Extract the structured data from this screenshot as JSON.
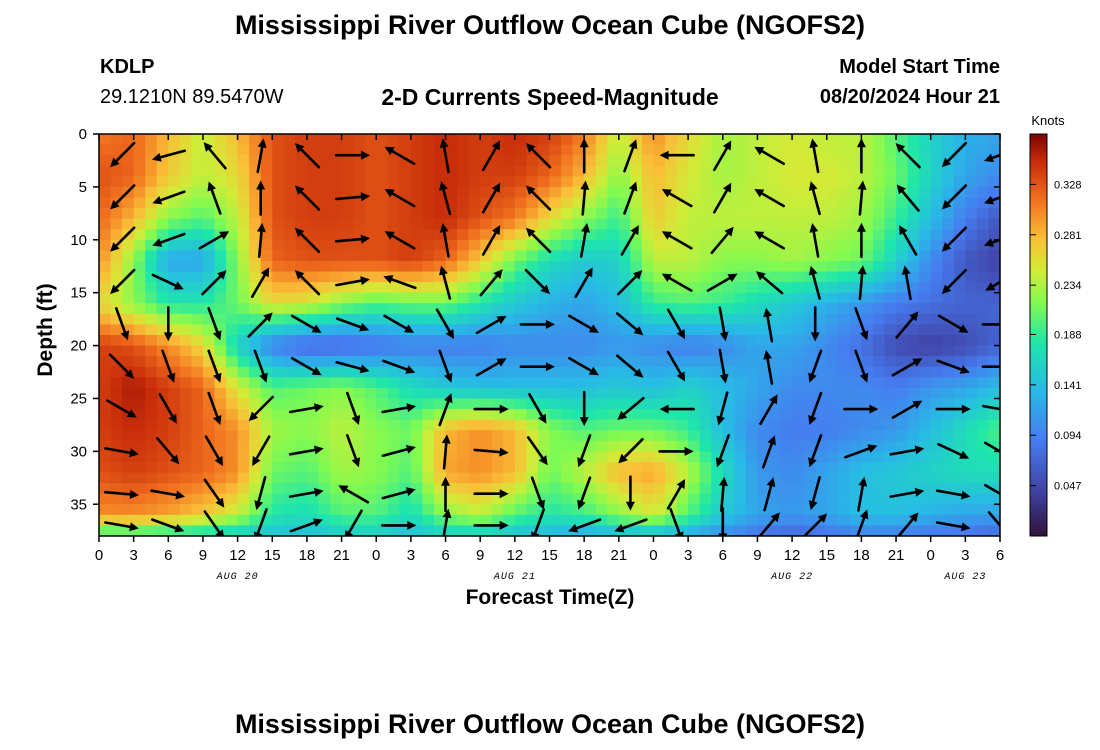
{
  "title": "Mississippi River Outflow Ocean Cube (NGOFS2)",
  "footer_title": "Mississippi River Outflow Ocean Cube (NGOFS2)",
  "station": {
    "id": "KDLP",
    "coords": "29.1210N  89.5470W"
  },
  "product": "2-D Currents Speed-Magnitude",
  "model_start": {
    "label": "Model Start Time",
    "value": "08/20/2024 Hour 21"
  },
  "chart_data": {
    "type": "heatmap",
    "xlabel": "Forecast Time(Z)",
    "ylabel": "Depth (ft)",
    "colorbar_label": "Knots",
    "colorbar_ticks": [
      0.047,
      0.094,
      0.141,
      0.188,
      0.234,
      0.281,
      0.328
    ],
    "colorbar_range": [
      0.0,
      0.375
    ],
    "x_tick_labels": [
      "0",
      "3",
      "6",
      "9",
      "12",
      "15",
      "18",
      "21",
      "0",
      "3",
      "6",
      "9",
      "12",
      "15",
      "18",
      "21",
      "0",
      "3",
      "6",
      "9",
      "12",
      "15",
      "18",
      "21",
      "0",
      "3",
      "6"
    ],
    "x_hours": [
      0,
      3,
      6,
      9,
      12,
      15,
      18,
      21,
      24,
      27,
      30,
      33,
      36,
      39,
      42,
      45,
      48,
      51,
      54,
      57,
      60,
      63,
      66,
      69,
      72,
      75,
      78
    ],
    "date_labels": [
      {
        "text": "AUG 20",
        "hour": 12
      },
      {
        "text": "AUG 21",
        "hour": 36
      },
      {
        "text": "AUG 22",
        "hour": 60
      },
      {
        "text": "AUG 23",
        "hour": 75
      }
    ],
    "xlim": [
      0,
      78
    ],
    "ylim": [
      0,
      38
    ],
    "y_ticks": [
      0,
      5,
      10,
      15,
      20,
      25,
      30,
      35
    ],
    "y_reversed": true,
    "grid": false,
    "speed_field": {
      "x_hours": [
        0,
        3,
        6,
        9,
        12,
        15,
        18,
        21,
        24,
        27,
        30,
        33,
        36,
        39,
        42,
        45,
        48,
        51,
        54,
        57,
        60,
        63,
        66,
        69,
        72,
        75,
        78
      ],
      "depths": [
        0,
        4,
        8,
        12,
        16,
        20,
        24,
        28,
        32,
        36,
        38
      ],
      "knots": [
        [
          0.31,
          0.32,
          0.28,
          0.24,
          0.28,
          0.33,
          0.34,
          0.34,
          0.33,
          0.34,
          0.35,
          0.34,
          0.35,
          0.34,
          0.31,
          0.24,
          0.3,
          0.26,
          0.23,
          0.24,
          0.25,
          0.24,
          0.24,
          0.2,
          0.16,
          0.13,
          0.12
        ],
        [
          0.33,
          0.32,
          0.27,
          0.24,
          0.26,
          0.33,
          0.34,
          0.34,
          0.33,
          0.34,
          0.35,
          0.34,
          0.34,
          0.32,
          0.28,
          0.22,
          0.28,
          0.25,
          0.23,
          0.24,
          0.25,
          0.25,
          0.24,
          0.21,
          0.16,
          0.12,
          0.1
        ],
        [
          0.32,
          0.28,
          0.22,
          0.2,
          0.24,
          0.33,
          0.34,
          0.34,
          0.33,
          0.34,
          0.35,
          0.33,
          0.31,
          0.26,
          0.22,
          0.19,
          0.27,
          0.24,
          0.24,
          0.24,
          0.24,
          0.24,
          0.23,
          0.19,
          0.14,
          0.09,
          0.06
        ],
        [
          0.3,
          0.22,
          0.12,
          0.12,
          0.22,
          0.32,
          0.33,
          0.33,
          0.33,
          0.34,
          0.32,
          0.27,
          0.21,
          0.17,
          0.15,
          0.16,
          0.24,
          0.24,
          0.22,
          0.22,
          0.23,
          0.22,
          0.21,
          0.16,
          0.1,
          0.06,
          0.04
        ],
        [
          0.26,
          0.22,
          0.18,
          0.18,
          0.21,
          0.26,
          0.25,
          0.22,
          0.2,
          0.21,
          0.21,
          0.18,
          0.15,
          0.13,
          0.12,
          0.14,
          0.19,
          0.2,
          0.19,
          0.17,
          0.15,
          0.13,
          0.11,
          0.09,
          0.08,
          0.07,
          0.07
        ],
        [
          0.34,
          0.33,
          0.3,
          0.26,
          0.16,
          0.09,
          0.07,
          0.07,
          0.08,
          0.09,
          0.09,
          0.09,
          0.1,
          0.1,
          0.1,
          0.11,
          0.1,
          0.09,
          0.1,
          0.12,
          0.12,
          0.1,
          0.08,
          0.05,
          0.04,
          0.05,
          0.07
        ],
        [
          0.34,
          0.36,
          0.34,
          0.32,
          0.25,
          0.2,
          0.21,
          0.22,
          0.2,
          0.17,
          0.15,
          0.14,
          0.14,
          0.14,
          0.14,
          0.15,
          0.14,
          0.16,
          0.14,
          0.12,
          0.1,
          0.1,
          0.1,
          0.09,
          0.11,
          0.12,
          0.14
        ],
        [
          0.34,
          0.35,
          0.34,
          0.32,
          0.3,
          0.23,
          0.22,
          0.24,
          0.22,
          0.21,
          0.28,
          0.3,
          0.28,
          0.22,
          0.2,
          0.21,
          0.21,
          0.19,
          0.14,
          0.1,
          0.09,
          0.09,
          0.1,
          0.11,
          0.14,
          0.17,
          0.2
        ],
        [
          0.33,
          0.34,
          0.33,
          0.32,
          0.3,
          0.21,
          0.2,
          0.23,
          0.22,
          0.2,
          0.29,
          0.3,
          0.28,
          0.21,
          0.24,
          0.28,
          0.29,
          0.24,
          0.17,
          0.11,
          0.1,
          0.12,
          0.14,
          0.15,
          0.16,
          0.17,
          0.17
        ],
        [
          0.3,
          0.3,
          0.29,
          0.27,
          0.24,
          0.18,
          0.17,
          0.2,
          0.2,
          0.17,
          0.22,
          0.24,
          0.2,
          0.18,
          0.19,
          0.22,
          0.25,
          0.2,
          0.15,
          0.12,
          0.11,
          0.12,
          0.14,
          0.14,
          0.13,
          0.12,
          0.12
        ],
        [
          0.18,
          0.18,
          0.17,
          0.16,
          0.15,
          0.14,
          0.14,
          0.15,
          0.15,
          0.14,
          0.15,
          0.15,
          0.14,
          0.13,
          0.12,
          0.13,
          0.13,
          0.12,
          0.1,
          0.08,
          0.07,
          0.08,
          0.09,
          0.09,
          0.08,
          0.08,
          0.07
        ]
      ]
    },
    "vectors": {
      "x_hours": [
        2,
        6,
        10,
        14,
        18,
        22,
        26,
        30,
        34,
        38,
        42,
        46,
        50,
        54,
        58,
        62,
        66,
        70,
        74,
        78
      ],
      "depths": [
        2,
        6,
        10,
        14,
        18,
        22,
        26,
        30,
        34,
        37
      ],
      "direction_deg": [
        [
          225,
          255,
          320,
          10,
          315,
          90,
          300,
          350,
          30,
          315,
          0,
          20,
          270,
          30,
          300,
          350,
          0,
          315,
          225,
          250
        ],
        [
          225,
          250,
          340,
          0,
          315,
          85,
          300,
          345,
          30,
          315,
          5,
          20,
          300,
          30,
          300,
          345,
          5,
          320,
          225,
          250
        ],
        [
          225,
          250,
          60,
          5,
          315,
          85,
          300,
          350,
          30,
          315,
          10,
          30,
          300,
          40,
          300,
          350,
          0,
          330,
          225,
          250
        ],
        [
          225,
          115,
          45,
          30,
          315,
          80,
          290,
          345,
          40,
          135,
          30,
          45,
          300,
          60,
          310,
          345,
          5,
          350,
          225,
          240
        ],
        [
          160,
          180,
          160,
          45,
          120,
          110,
          120,
          150,
          60,
          90,
          120,
          130,
          150,
          170,
          350,
          180,
          160,
          40,
          120,
          90
        ],
        [
          135,
          160,
          160,
          160,
          120,
          105,
          110,
          160,
          60,
          90,
          120,
          130,
          150,
          170,
          350,
          200,
          160,
          60,
          110,
          90
        ],
        [
          120,
          150,
          160,
          225,
          80,
          160,
          80,
          20,
          90,
          150,
          180,
          230,
          270,
          195,
          30,
          200,
          90,
          60,
          90,
          100
        ],
        [
          100,
          140,
          150,
          210,
          80,
          160,
          75,
          5,
          95,
          145,
          200,
          225,
          90,
          200,
          20,
          200,
          70,
          80,
          115,
          120
        ],
        [
          95,
          100,
          145,
          195,
          80,
          300,
          75,
          0,
          90,
          160,
          200,
          180,
          30,
          5,
          15,
          195,
          10,
          80,
          100,
          120
        ],
        [
          100,
          110,
          145,
          200,
          70,
          210,
          90,
          10,
          90,
          200,
          250,
          250,
          160,
          180,
          40,
          45,
          20,
          40,
          100,
          140
        ]
      ]
    }
  }
}
